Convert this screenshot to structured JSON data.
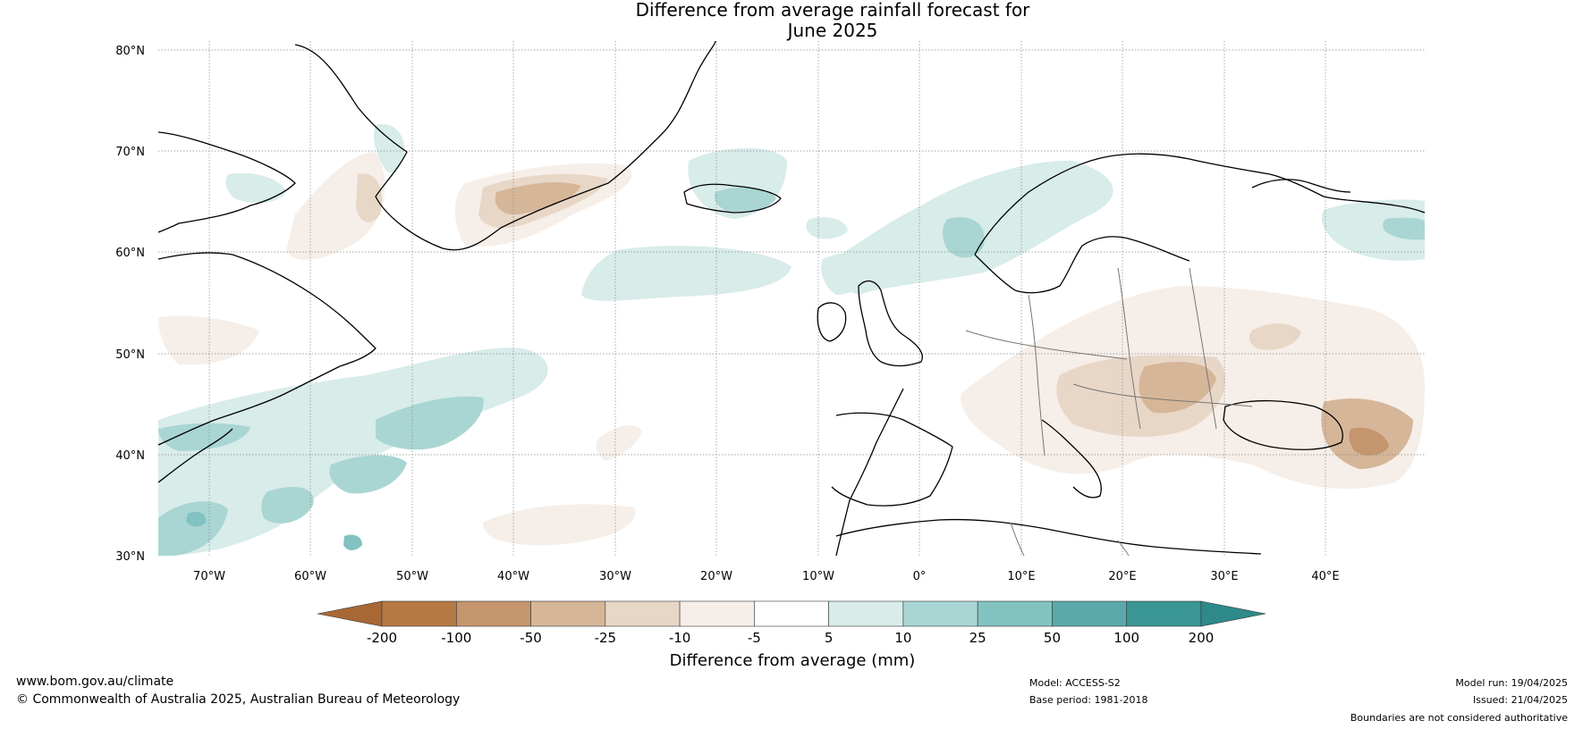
{
  "title": {
    "line1": "Difference from average rainfall forecast for",
    "line2": "June 2025"
  },
  "latitude_labels": [
    "80°N",
    "70°N",
    "60°N",
    "50°N",
    "40°N",
    "30°N"
  ],
  "longitude_labels": [
    "70°W",
    "60°W",
    "50°W",
    "40°W",
    "30°W",
    "20°W",
    "10°W",
    "0°",
    "10°E",
    "20°E",
    "30°E",
    "40°E"
  ],
  "colorbar": {
    "title": "Difference from average (mm)",
    "tick_labels": [
      "-200",
      "-100",
      "-50",
      "-25",
      "-10",
      "-5",
      "5",
      "10",
      "25",
      "50",
      "100",
      "200"
    ],
    "colors": [
      "#a86836",
      "#b57944",
      "#c5956d",
      "#d6b699",
      "#e8d7c7",
      "#f6eee8",
      "#ffffff",
      "#d8ecea",
      "#a9d5d3",
      "#82c2c0",
      "#5aa9aa",
      "#3a9695",
      "#2e8a89"
    ]
  },
  "footer": {
    "website": "www.bom.gov.au/climate",
    "copyright": "© Commonwealth of Australia 2025, Australian Bureau of Meteorology",
    "model": "Model: ACCESS-S2",
    "base_period": "Base period: 1981-2018",
    "model_run": "Model run: 19/04/2025",
    "issued": "Issued: 21/04/2025",
    "disclaimer": "Boundaries are not considered authoritative"
  }
}
